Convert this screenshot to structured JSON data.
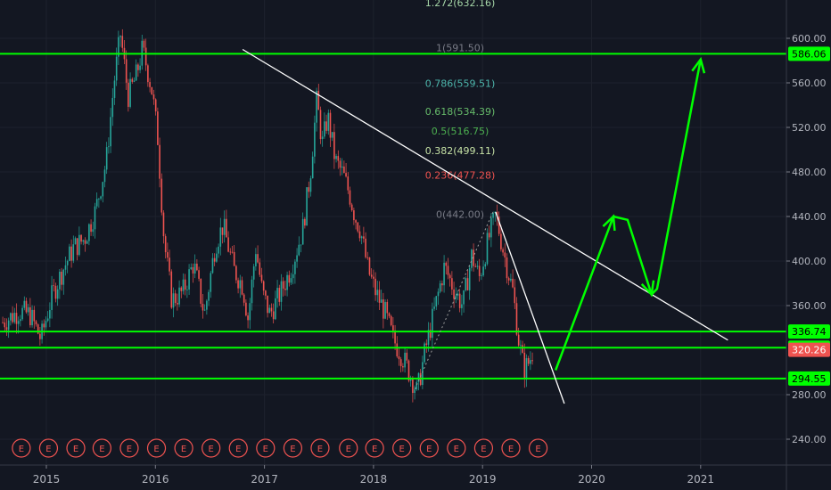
{
  "chart_data": {
    "type": "candlestick",
    "title": "",
    "colors": {
      "background": "#131722",
      "up": "#26a69a",
      "down": "#ef5350",
      "level": "#00ff00",
      "trendline": "#ffffff",
      "grid": "#1e222d",
      "axis_text": "#b2b5be",
      "current_price": "#ef5350"
    },
    "x_axis": {
      "labels": [
        "2015",
        "2016",
        "2017",
        "2018",
        "2019",
        "2020",
        "2021"
      ],
      "label_years": [
        2015.0,
        2016.0,
        2017.0,
        2018.0,
        2019.0,
        2020.0,
        2021.0
      ]
    },
    "y_axis": {
      "range": [
        228,
        648
      ],
      "ticks": [
        "600.00",
        "560.00",
        "520.00",
        "480.00",
        "440.00",
        "400.00",
        "360.00",
        "280.00",
        "240.00"
      ],
      "tick_values": [
        600,
        560,
        520,
        480,
        440,
        400,
        360,
        280,
        240
      ]
    },
    "price_path": [
      [
        2014.6,
        345
      ],
      [
        2014.75,
        355
      ],
      [
        2014.85,
        352
      ],
      [
        2014.95,
        330
      ],
      [
        2015.05,
        368
      ],
      [
        2015.15,
        392
      ],
      [
        2015.25,
        412
      ],
      [
        2015.35,
        420
      ],
      [
        2015.45,
        445
      ],
      [
        2015.55,
        490
      ],
      [
        2015.62,
        560
      ],
      [
        2015.68,
        604
      ],
      [
        2015.75,
        548
      ],
      [
        2015.82,
        565
      ],
      [
        2015.88,
        590
      ],
      [
        2015.92,
        575
      ],
      [
        2015.97,
        552
      ],
      [
        2016.02,
        512
      ],
      [
        2016.08,
        418
      ],
      [
        2016.15,
        365
      ],
      [
        2016.25,
        372
      ],
      [
        2016.35,
        398
      ],
      [
        2016.45,
        352
      ],
      [
        2016.55,
        415
      ],
      [
        2016.62,
        432
      ],
      [
        2016.72,
        392
      ],
      [
        2016.8,
        378
      ],
      [
        2016.85,
        348
      ],
      [
        2016.92,
        412
      ],
      [
        2016.98,
        372
      ],
      [
        2017.05,
        352
      ],
      [
        2017.15,
        372
      ],
      [
        2017.25,
        395
      ],
      [
        2017.35,
        428
      ],
      [
        2017.42,
        478
      ],
      [
        2017.48,
        545
      ],
      [
        2017.53,
        505
      ],
      [
        2017.58,
        530
      ],
      [
        2017.65,
        490
      ],
      [
        2017.72,
        478
      ],
      [
        2017.78,
        460
      ],
      [
        2017.83,
        440
      ],
      [
        2017.88,
        428
      ],
      [
        2017.95,
        392
      ],
      [
        2018.02,
        372
      ],
      [
        2018.1,
        355
      ],
      [
        2018.18,
        330
      ],
      [
        2018.26,
        315
      ],
      [
        2018.35,
        295
      ],
      [
        2018.4,
        282
      ],
      [
        2018.47,
        318
      ],
      [
        2018.55,
        352
      ],
      [
        2018.65,
        395
      ],
      [
        2018.75,
        372
      ],
      [
        2018.82,
        360
      ],
      [
        2018.9,
        405
      ],
      [
        2018.97,
        385
      ],
      [
        2019.05,
        418
      ],
      [
        2019.12,
        442
      ],
      [
        2019.2,
        405
      ],
      [
        2019.28,
        372
      ],
      [
        2019.33,
        330
      ],
      [
        2019.38,
        302
      ],
      [
        2019.43,
        310
      ],
      [
        2019.47,
        322
      ]
    ],
    "horizontal_levels": [
      {
        "label": "586.06",
        "value": 586.06
      },
      {
        "label": "336.74",
        "value": 336.74
      },
      {
        "label": "322.19",
        "value": 322.19
      },
      {
        "label": "294.55",
        "value": 294.55
      }
    ],
    "current_price": {
      "label": "320.26",
      "value": 320.26
    },
    "fibonacci": [
      {
        "label": "1.272(632.16)",
        "value": 632.16,
        "color": "#a5d6a7"
      },
      {
        "label": "1(591.50)",
        "value": 591.5,
        "color": "#787b86"
      },
      {
        "label": "0.786(559.51)",
        "value": 559.51,
        "color": "#4db6ac"
      },
      {
        "label": "0.618(534.39)",
        "value": 534.39,
        "color": "#66bb6a"
      },
      {
        "label": "0.5(516.75)",
        "value": 516.75,
        "color": "#4caf50"
      },
      {
        "label": "0.382(499.11)",
        "value": 499.11,
        "color": "#c5e1a5"
      },
      {
        "label": "0.236(477.28)",
        "value": 477.28,
        "color": "#ef5350"
      },
      {
        "label": "0(442.00)",
        "value": 442.0,
        "color": "#787b86"
      }
    ],
    "trendlines": [
      {
        "name": "",
        "from": [
          2016.8,
          590
        ],
        "to": [
          2021.25,
          329
        ]
      },
      {
        "name": "",
        "from": [
          2019.12,
          444
        ],
        "to": [
          2019.75,
          272
        ]
      },
      {
        "name": "",
        "from": [
          2018.38,
          285
        ],
        "to": [
          2019.1,
          445
        ],
        "style": "dotted"
      }
    ],
    "projection": [
      [
        2019.67,
        302
      ],
      [
        2020.2,
        440
      ],
      [
        2020.33,
        437
      ],
      [
        2020.55,
        370
      ],
      [
        2020.6,
        375
      ],
      [
        2021.0,
        581
      ]
    ],
    "earnings_markers": {
      "label": "E",
      "years": [
        2014.77,
        2015.02,
        2015.27,
        2015.51,
        2015.76,
        2016.01,
        2016.26,
        2016.51,
        2016.76,
        2017.01,
        2017.26,
        2017.51,
        2017.77,
        2018.01,
        2018.26,
        2018.51,
        2018.76,
        2019.01,
        2019.26,
        2019.51
      ]
    }
  }
}
